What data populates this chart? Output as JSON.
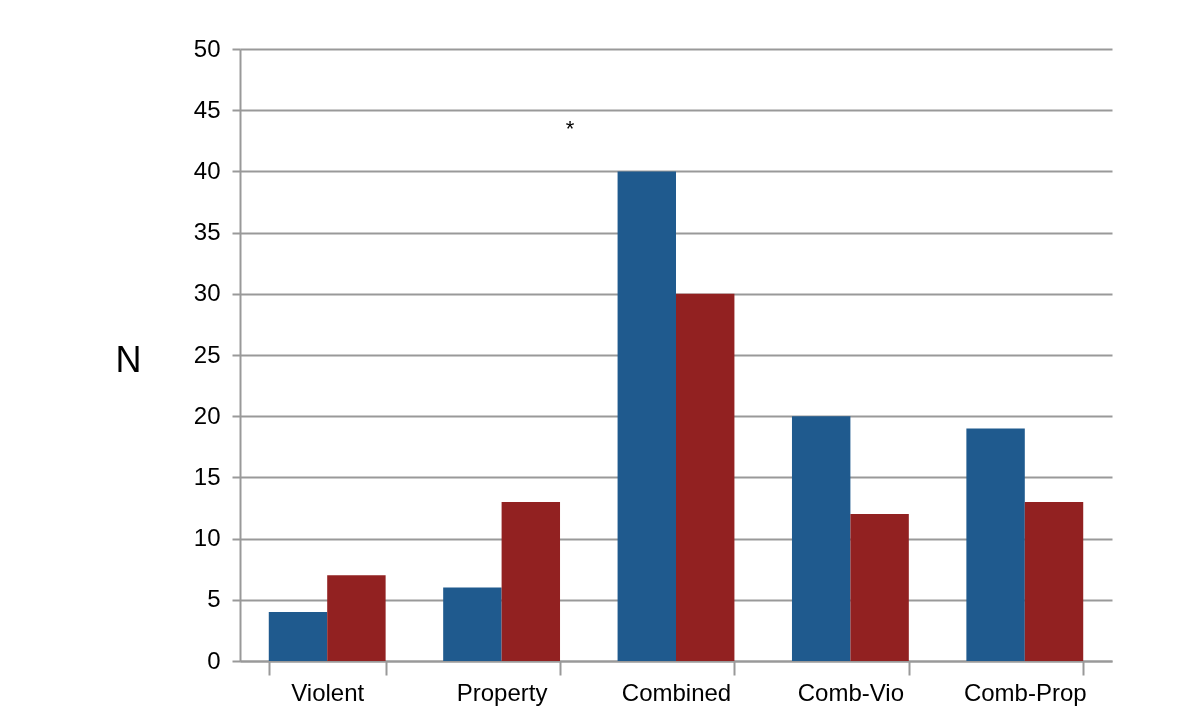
{
  "chart_data": {
    "type": "bar",
    "ylabel": "N",
    "categories": [
      "Violent",
      "Property",
      "Combined",
      "Comb-Vio",
      "Comb-Prop"
    ],
    "series": [
      {
        "color": "#1f5a8e",
        "values": [
          4,
          6,
          40,
          20,
          19
        ]
      },
      {
        "color": "#922121",
        "values": [
          7,
          13,
          30,
          12,
          13
        ]
      }
    ],
    "ylim": [
      0,
      50
    ],
    "yticks": [
      0,
      5,
      10,
      15,
      20,
      25,
      30,
      35,
      40,
      45,
      50
    ],
    "grid": "y",
    "annotations": [
      "*"
    ]
  }
}
